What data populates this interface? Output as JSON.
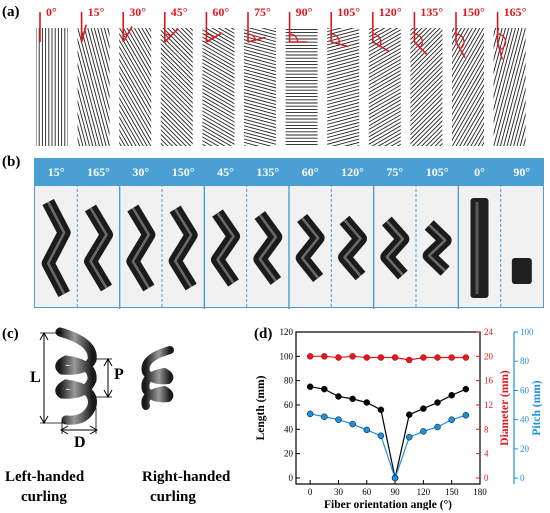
{
  "panel_labels": {
    "a": "(a)",
    "b": "(b)",
    "c": "(c)",
    "d": "(d)"
  },
  "panel_a": {
    "angles": [
      "0°",
      "15°",
      "30°",
      "45°",
      "60°",
      "75°",
      "90°",
      "105°",
      "120°",
      "135°",
      "150°",
      "165°"
    ],
    "accent_color": "#e0191f"
  },
  "panel_b": {
    "header_color": "#4aa0d3",
    "labels": [
      "15°",
      "165°",
      "30°",
      "150°",
      "45°",
      "135°",
      "60°",
      "120°",
      "75°",
      "105°",
      "0°",
      "90°"
    ]
  },
  "panel_c": {
    "dimension_labels": {
      "L": "L",
      "P": "P",
      "D": "D"
    },
    "captions": {
      "left": [
        "Left-handed",
        "curling"
      ],
      "right": [
        "Right-handed",
        "curling"
      ]
    }
  },
  "chart_data": {
    "type": "line",
    "xlabel": "Fiber orientation angle (°)",
    "xlim": [
      -15,
      180
    ],
    "xticks": [
      0,
      30,
      60,
      90,
      120,
      150,
      180
    ],
    "axes": {
      "left": {
        "label": "Length (mm)",
        "ylim": [
          -5,
          120
        ],
        "ticks": [
          0,
          20,
          40,
          60,
          80,
          100,
          120
        ],
        "color": "#000000"
      },
      "right1": {
        "label": "Diameter (mm)",
        "ylim": [
          -1,
          24
        ],
        "ticks": [
          0,
          4,
          8,
          12,
          16,
          20,
          24
        ],
        "color": "#e0191f"
      },
      "right2": {
        "label": "Pitch (mm)",
        "ylim": [
          -4,
          100
        ],
        "ticks": [
          0,
          20,
          40,
          60,
          80,
          100
        ],
        "color": "#1f8fe0"
      }
    },
    "x": [
      0,
      15,
      30,
      45,
      60,
      75,
      90,
      105,
      120,
      135,
      150,
      165
    ],
    "series": [
      {
        "axis": "left",
        "color": "#e0191f",
        "values": [
          100,
          100,
          99,
          100,
          99,
          99,
          99,
          97,
          99,
          99,
          99,
          99
        ]
      },
      {
        "axis": "left",
        "color": "#000000",
        "values": [
          75,
          73,
          67,
          65,
          62,
          56,
          0,
          52,
          57,
          62,
          68,
          73
        ]
      },
      {
        "axis": "right2",
        "color": "#1f8fe0",
        "values": [
          44,
          42,
          40,
          37,
          33,
          29,
          0,
          28,
          32,
          35,
          40,
          43
        ]
      }
    ]
  }
}
